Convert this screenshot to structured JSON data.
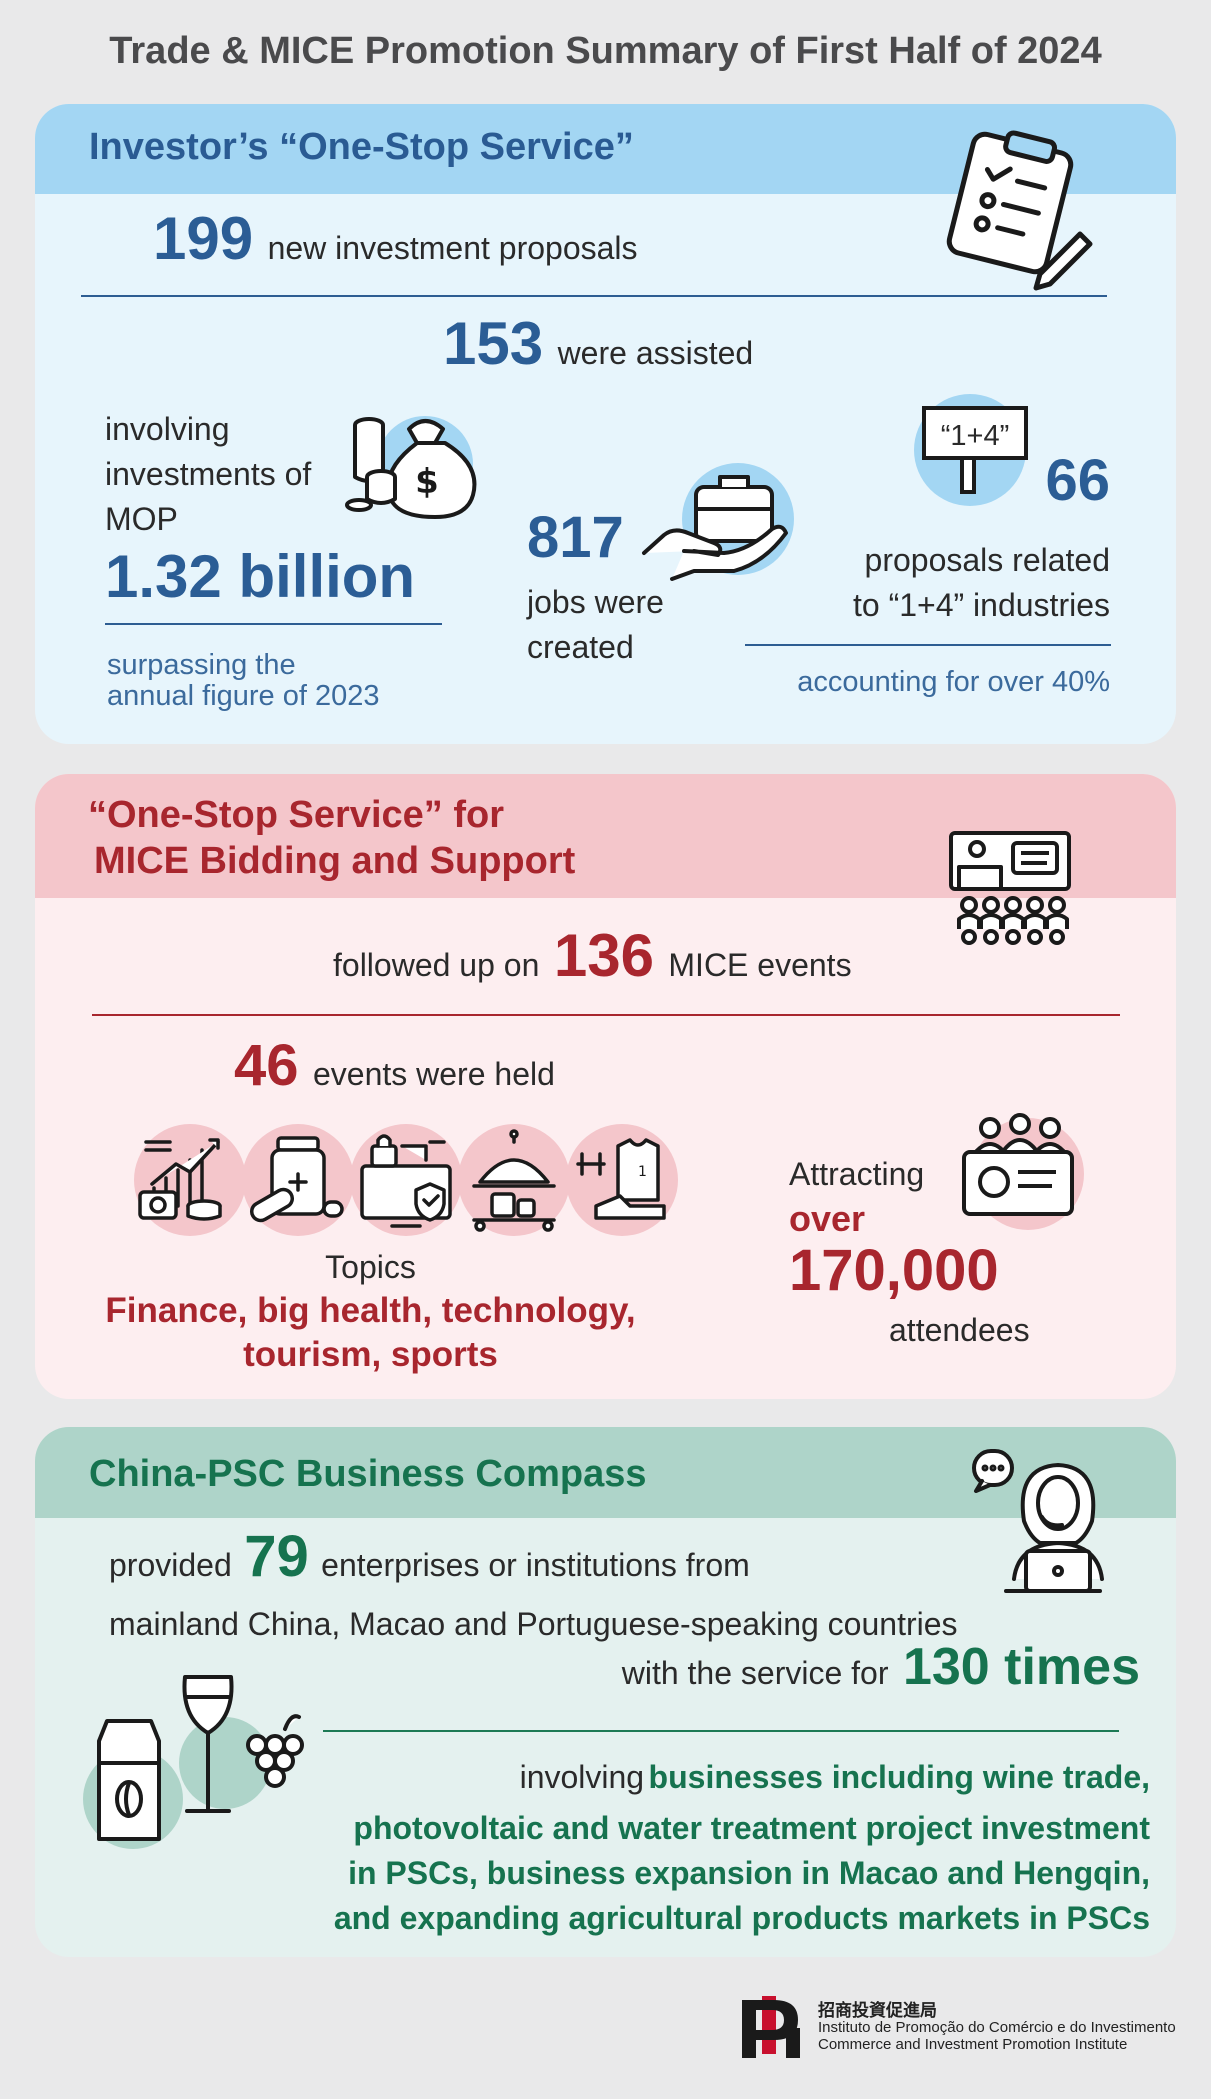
{
  "title": "Trade & MICE Promotion Summary of First Half of 2024",
  "investor": {
    "heading": "Investor’s “One-Stop Service”",
    "proposals_num": "199",
    "proposals_text": "new investment proposals",
    "assisted_num": "153",
    "assisted_text": "were assisted",
    "invest_line1": "involving",
    "invest_line2": "investments of",
    "invest_line3": "MOP",
    "invest_amount": "1.32 billion",
    "invest_note_line1": "surpassing the",
    "invest_note_line2": "annual figure of 2023",
    "jobs_num": "817",
    "jobs_line1": "jobs were",
    "jobs_line2": "created",
    "sign_text": "“1+4”",
    "industry_num": "66",
    "industry_line1": "proposals related",
    "industry_line2": "to “1+4” industries",
    "industry_note": "accounting for over 40%",
    "icons": [
      "checklist-icon",
      "money-bag-icon",
      "briefcase-hand-icon",
      "sign-board-icon"
    ],
    "accent": "#2b5d95"
  },
  "mice": {
    "heading_line1": "“One-Stop Service” for",
    "heading_line2": "MICE Bidding and Support",
    "followed_pre": "followed up on",
    "followed_num": "136",
    "followed_post": "MICE events",
    "held_num": "46",
    "held_text": "events were held",
    "topics_label": "Topics",
    "topics_line1": "Finance, big health, technology,",
    "topics_line2": "tourism, sports",
    "attract_label": "Attracting",
    "attract_over": "over",
    "attract_num": "170,000",
    "attract_text": "attendees",
    "icons": [
      "conference-icon",
      "finance-icon",
      "health-icon",
      "technology-icon",
      "tourism-icon",
      "sports-icon",
      "attendees-icon"
    ],
    "accent": "#a8262e"
  },
  "compass": {
    "heading": "China-PSC Business Compass",
    "provided_pre": "provided",
    "provided_num": "79",
    "provided_post": "enterprises or institutions from",
    "provided_line2": "mainland China, Macao and Portuguese-speaking countries",
    "service_pre": "with the service for",
    "service_num": "130 times",
    "involving_pre": "involving",
    "involving_line1": "businesses including wine trade,",
    "involving_line2": "photovoltaic and water treatment project investment",
    "involving_line3": "in PSCs, business expansion in Macao and Hengqin,",
    "involving_line4": "and expanding agricultural products markets in PSCs",
    "icons": [
      "consultant-icon",
      "coffee-wine-grapes-icon"
    ],
    "accent": "#16734f"
  },
  "footer": {
    "org_cn": "招商投資促進局",
    "org_pt": "Instituto de Promoção do Comércio e do Investimento",
    "org_en": "Commerce and Investment Promotion Institute"
  }
}
